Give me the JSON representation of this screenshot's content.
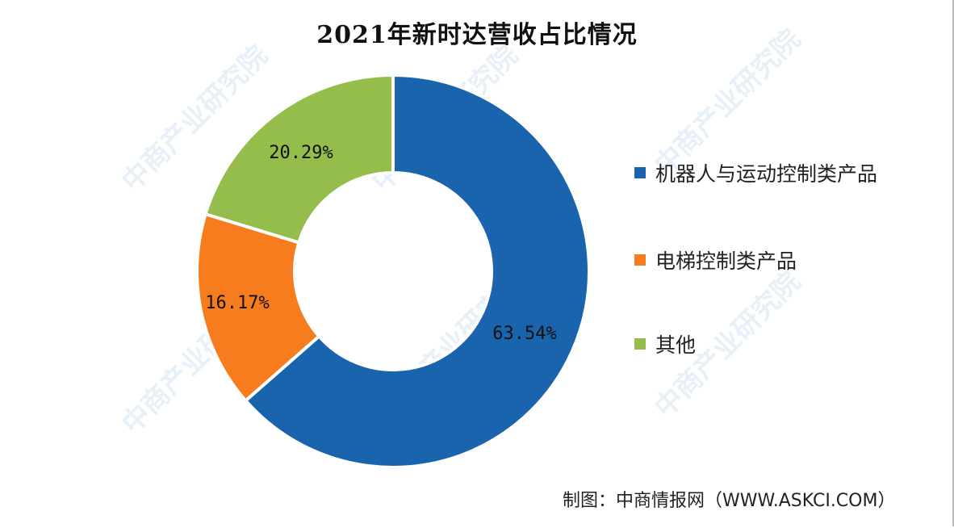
{
  "title": "2021年新时达营收占比情况",
  "source": "制图：中商情报网（WWW.ASKCI.COM）",
  "watermark": "中商产业研究院",
  "colors": {
    "blue": "#1a64ae",
    "orange": "#f67c1d",
    "green": "#95bd4c"
  },
  "legend": [
    {
      "label": "机器人与运动控制类产品",
      "color": "#1a64ae"
    },
    {
      "label": "电梯控制类产品",
      "color": "#f67c1d"
    },
    {
      "label": "其他",
      "color": "#95bd4c"
    }
  ],
  "labels": {
    "blue": "63.54%",
    "orange": "16.17%",
    "green": "20.29%"
  },
  "chart_data": {
    "type": "pie",
    "subtype": "donut",
    "title": "2021年新时达营收占比情况",
    "categories": [
      "机器人与运动控制类产品",
      "电梯控制类产品",
      "其他"
    ],
    "values": [
      63.54,
      16.17,
      20.29
    ],
    "unit": "%",
    "legend_position": "right",
    "source": "制图：中商情报网（WWW.ASKCI.COM）"
  }
}
